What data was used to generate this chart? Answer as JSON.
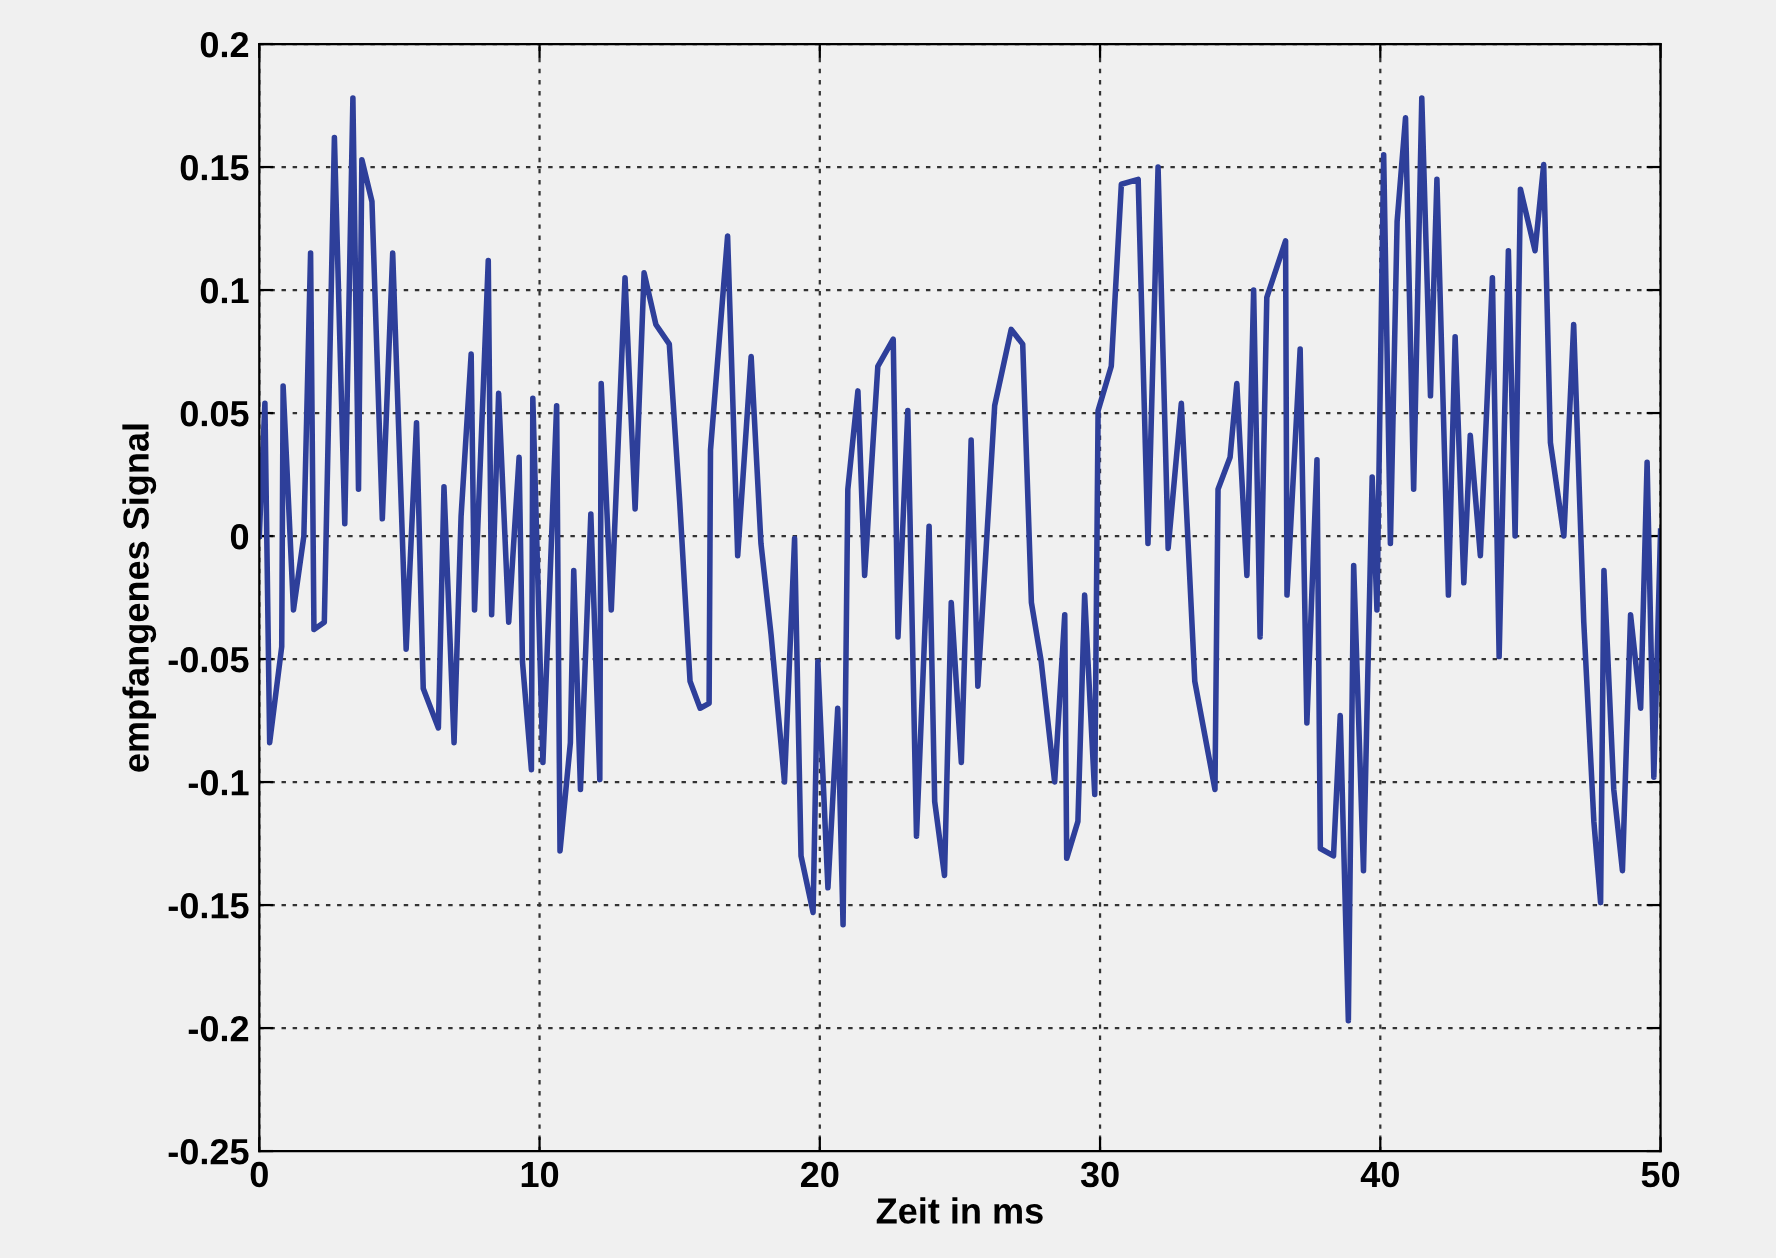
{
  "chart_data": {
    "type": "line",
    "xlabel": "Zeit in ms",
    "ylabel": "empfangenes Signal",
    "series": [
      {
        "color": "#2e3f9a",
        "x": [
          0,
          0.2,
          0.37,
          0.8,
          0.85,
          1.22,
          1.59,
          1.83,
          1.95,
          2.32,
          2.68,
          3.05,
          3.34,
          3.54,
          3.66,
          4.02,
          4.39,
          4.76,
          5.24,
          5.61,
          5.85,
          6.39,
          6.59,
          6.95,
          7.2,
          7.56,
          7.68,
          8.17,
          8.29,
          8.54,
          8.9,
          9.27,
          9.39,
          9.71,
          9.76,
          10.12,
          10.61,
          10.73,
          11.1,
          11.22,
          11.46,
          11.83,
          12.15,
          12.2,
          12.56,
          13.05,
          13.41,
          13.73,
          14.15,
          14.63,
          15.0,
          15.37,
          15.73,
          16.05,
          16.1,
          16.71,
          17.07,
          17.55,
          17.9,
          18.26,
          18.74,
          19.1,
          19.33,
          19.76,
          19.93,
          20.29,
          20.64,
          20.83,
          21.0,
          21.36,
          21.6,
          22.07,
          22.62,
          22.79,
          23.14,
          23.45,
          23.9,
          24.1,
          24.45,
          24.69,
          25.05,
          25.4,
          25.64,
          26.24,
          26.83,
          27.24,
          27.55,
          27.9,
          28.38,
          28.74,
          28.81,
          29.21,
          29.45,
          29.81,
          29.93,
          30.4,
          30.76,
          31.36,
          31.71,
          32.07,
          32.43,
          32.9,
          33.38,
          34.1,
          34.21,
          34.64,
          34.88,
          35.24,
          35.48,
          35.71,
          35.95,
          36.62,
          36.67,
          37.14,
          37.38,
          37.74,
          37.86,
          38.33,
          38.57,
          38.86,
          39.05,
          39.4,
          39.71,
          39.88,
          40.12,
          40.36,
          40.6,
          40.9,
          41.19,
          41.48,
          41.79,
          42.02,
          42.43,
          42.67,
          42.98,
          43.21,
          43.57,
          44.0,
          44.24,
          44.57,
          44.81,
          45.0,
          45.52,
          45.83,
          46.07,
          46.55,
          46.9,
          47.26,
          47.62,
          47.86,
          47.98,
          48.33,
          48.64,
          48.93,
          49.29,
          49.52,
          49.76,
          50.0
        ],
        "values": [
          0,
          0.054,
          -0.084,
          -0.045,
          0.061,
          -0.03,
          0.0,
          0.115,
          -0.038,
          -0.035,
          0.162,
          0.005,
          0.178,
          0.019,
          0.153,
          0.136,
          0.007,
          0.115,
          -0.046,
          0.046,
          -0.062,
          -0.078,
          0.02,
          -0.084,
          0.008,
          0.074,
          -0.03,
          0.112,
          -0.032,
          0.058,
          -0.035,
          0.032,
          -0.051,
          -0.095,
          0.056,
          -0.092,
          0.053,
          -0.128,
          -0.084,
          -0.014,
          -0.103,
          0.009,
          -0.099,
          0.062,
          -0.03,
          0.105,
          0.011,
          0.107,
          0.086,
          0.078,
          0.014,
          -0.059,
          -0.07,
          -0.068,
          0.035,
          0.122,
          -0.008,
          0.073,
          -0.003,
          -0.04,
          -0.1,
          -0.001,
          -0.13,
          -0.153,
          -0.051,
          -0.143,
          -0.07,
          -0.158,
          0.019,
          0.059,
          -0.016,
          0.069,
          0.08,
          -0.041,
          0.051,
          -0.122,
          0.004,
          -0.108,
          -0.138,
          -0.027,
          -0.092,
          0.039,
          -0.061,
          0.053,
          0.084,
          0.078,
          -0.027,
          -0.051,
          -0.1,
          -0.032,
          -0.131,
          -0.116,
          -0.024,
          -0.105,
          0.051,
          0.069,
          0.143,
          0.145,
          -0.003,
          0.15,
          -0.005,
          0.054,
          -0.059,
          -0.103,
          0.019,
          0.032,
          0.062,
          -0.016,
          0.1,
          -0.041,
          0.097,
          0.12,
          -0.024,
          0.076,
          -0.076,
          0.031,
          -0.127,
          -0.13,
          -0.073,
          -0.197,
          -0.012,
          -0.136,
          0.024,
          -0.03,
          0.155,
          -0.003,
          0.128,
          0.17,
          0.019,
          0.178,
          0.057,
          0.145,
          -0.024,
          0.081,
          -0.019,
          0.041,
          -0.008,
          0.105,
          -0.049,
          0.116,
          0.0,
          0.141,
          0.116,
          0.151,
          0.038,
          0.0,
          0.086,
          -0.035,
          -0.116,
          -0.149,
          -0.014,
          -0.103,
          -0.136,
          -0.032,
          -0.07,
          0.03,
          -0.098,
          0.002
        ]
      }
    ],
    "xlim": [
      0,
      50
    ],
    "xticks": [
      0,
      10,
      20,
      30,
      40,
      50
    ],
    "ylim": [
      -0.25,
      0.2
    ],
    "yticks": [
      -0.25,
      -0.2,
      -0.15,
      -0.1,
      -0.05,
      0,
      0.05,
      0.1,
      0.15,
      0.2
    ],
    "grid": true
  }
}
